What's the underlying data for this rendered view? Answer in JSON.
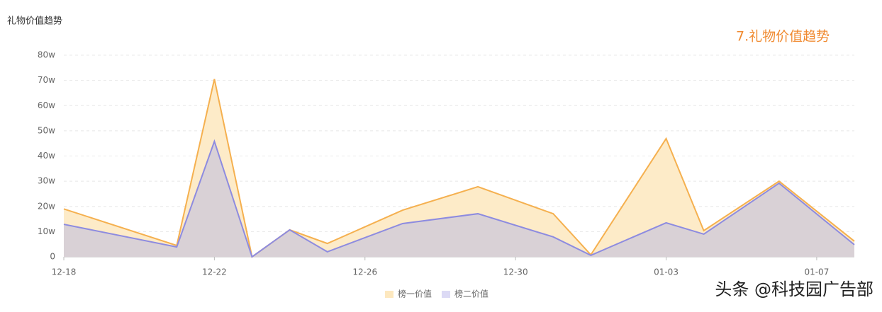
{
  "chart_data": {
    "type": "area",
    "title": "礼物价值趋势",
    "annotation": "7.礼物价值趋势",
    "watermark": "头条 @科技园广告部",
    "x": [
      "12-18",
      "12-21",
      "12-22",
      "12-23",
      "12-24",
      "12-25",
      "12-27",
      "12-29",
      "12-31",
      "01-01",
      "01-03",
      "01-04",
      "01-06",
      "01-08"
    ],
    "xlim": [
      "12-18",
      "01-08"
    ],
    "xticks": [
      "12-18",
      "12-22",
      "12-26",
      "12-30",
      "01-03",
      "01-07"
    ],
    "ylim": [
      0,
      80
    ],
    "yticks": [
      0,
      {
        "value": 10,
        "label": "10w"
      },
      {
        "value": 20,
        "label": "20w"
      },
      {
        "value": 30,
        "label": "30w"
      },
      {
        "value": 40,
        "label": "40w"
      },
      {
        "value": 50,
        "label": "50w"
      },
      {
        "value": 60,
        "label": "60w"
      },
      {
        "value": 70,
        "label": "70w"
      },
      {
        "value": 80,
        "label": "80w"
      }
    ],
    "grid": true,
    "legend": "bottom",
    "series": [
      {
        "name": "榜一价值",
        "color": "#f5b04f",
        "area_color": "#fdebc8",
        "legend_color": "#fde8bf",
        "values": [
          19,
          4.5,
          70.5,
          0,
          10.7,
          5.3,
          18.5,
          27.8,
          17.1,
          0.8,
          46.9,
          10.4,
          30,
          6.2
        ]
      },
      {
        "name": "榜二价值",
        "color": "#8d8be0",
        "area_color": "#d9d1d6",
        "legend_color": "#dcdaf5",
        "values": [
          12.9,
          3.9,
          45.8,
          0,
          10.7,
          2,
          13.2,
          17.1,
          7.9,
          0.6,
          13.5,
          9,
          29.2,
          4.8
        ]
      }
    ]
  }
}
